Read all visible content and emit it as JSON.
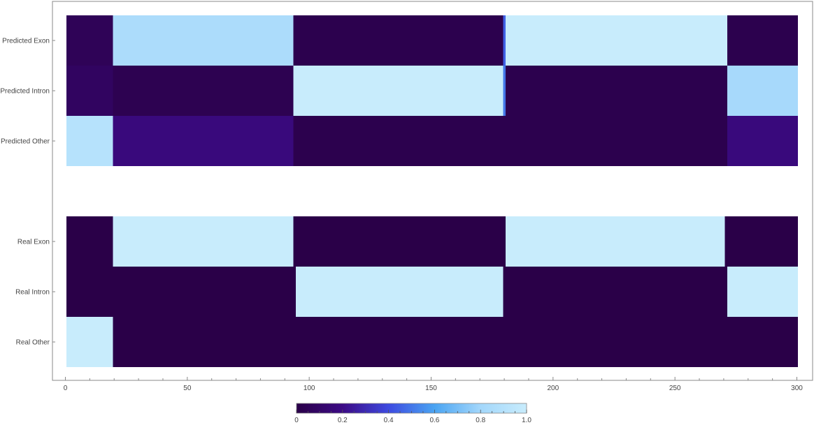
{
  "chart_data": {
    "type": "heatmap",
    "title": "",
    "xlabel": "",
    "ylabel": "",
    "xlim": [
      -5,
      305
    ],
    "x_ticks": [
      0,
      50,
      100,
      150,
      200,
      250,
      300
    ],
    "x_tick_labels": [
      "0",
      "50",
      "100",
      "150",
      "200",
      "250",
      "300"
    ],
    "n_positions": 300,
    "rows": [
      {
        "label": "Predicted Exon",
        "segments": [
          {
            "start": 1,
            "end": 20,
            "value": 0.05
          },
          {
            "start": 20,
            "end": 94,
            "value": 0.85
          },
          {
            "start": 94,
            "end": 180,
            "value": 0.02
          },
          {
            "start": 180,
            "end": 181,
            "value": 0.45
          },
          {
            "start": 181,
            "end": 272,
            "value": 1.0
          },
          {
            "start": 272,
            "end": 301,
            "value": 0.02
          }
        ]
      },
      {
        "label": "Predicted Intron",
        "segments": [
          {
            "start": 1,
            "end": 20,
            "value": 0.08
          },
          {
            "start": 20,
            "end": 94,
            "value": 0.03
          },
          {
            "start": 94,
            "end": 180,
            "value": 1.0
          },
          {
            "start": 180,
            "end": 181,
            "value": 0.5
          },
          {
            "start": 181,
            "end": 272,
            "value": 0.02
          },
          {
            "start": 272,
            "end": 301,
            "value": 0.82
          }
        ]
      },
      {
        "label": "Predicted Other",
        "segments": [
          {
            "start": 1,
            "end": 20,
            "value": 0.9
          },
          {
            "start": 20,
            "end": 94,
            "value": 0.17
          },
          {
            "start": 94,
            "end": 180,
            "value": 0.02
          },
          {
            "start": 180,
            "end": 181,
            "value": 0.02
          },
          {
            "start": 181,
            "end": 272,
            "value": 0.02
          },
          {
            "start": 272,
            "end": 301,
            "value": 0.17
          }
        ]
      },
      {
        "label": "",
        "segments": []
      },
      {
        "label": "Real Exon",
        "segments": [
          {
            "start": 1,
            "end": 20,
            "value": 0
          },
          {
            "start": 20,
            "end": 94,
            "value": 1
          },
          {
            "start": 94,
            "end": 181,
            "value": 0
          },
          {
            "start": 181,
            "end": 271,
            "value": 1
          },
          {
            "start": 271,
            "end": 301,
            "value": 0
          }
        ]
      },
      {
        "label": "Real Intron",
        "segments": [
          {
            "start": 1,
            "end": 95,
            "value": 0
          },
          {
            "start": 95,
            "end": 180,
            "value": 1
          },
          {
            "start": 180,
            "end": 272,
            "value": 0
          },
          {
            "start": 272,
            "end": 301,
            "value": 1
          }
        ]
      },
      {
        "label": "Real Other",
        "segments": [
          {
            "start": 1,
            "end": 20,
            "value": 1
          },
          {
            "start": 20,
            "end": 301,
            "value": 0
          }
        ]
      }
    ],
    "colorbar": {
      "min": 0,
      "max": 1.0,
      "ticks": [
        0,
        0.2,
        0.4,
        0.6,
        0.8,
        1.0
      ],
      "tick_labels": [
        "0",
        "0.2",
        "0.4",
        "0.6",
        "0.8",
        "1.0"
      ],
      "minor_step": 0.05
    },
    "colormap": [
      "#2a0048",
      "#3c0a85",
      "#3d4ae0",
      "#4aa4f2",
      "#a3d7fb",
      "#c8ecfc"
    ]
  }
}
